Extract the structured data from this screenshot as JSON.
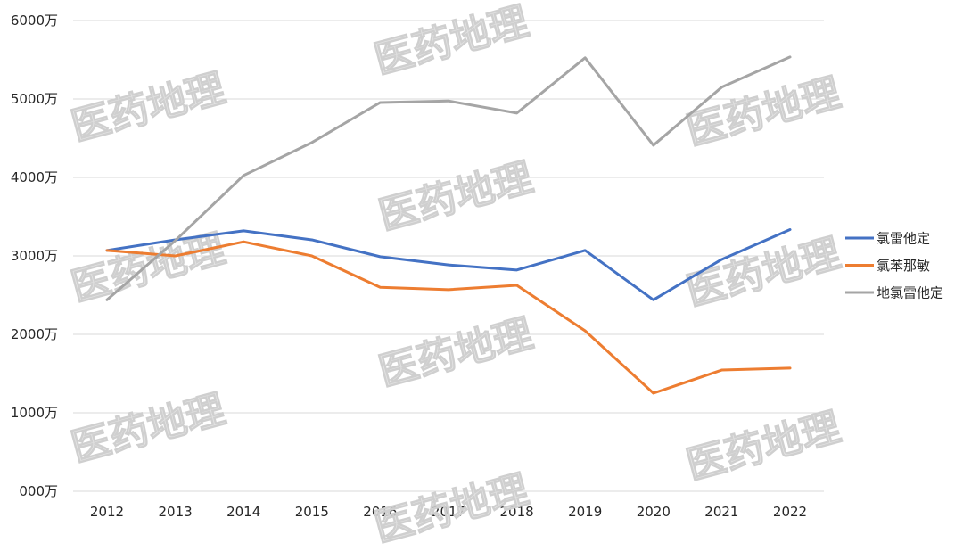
{
  "watermark": "医药地理",
  "chart_data": {
    "type": "line",
    "title": "",
    "xlabel": "",
    "ylabel": "",
    "categories": [
      "2012",
      "2013",
      "2014",
      "2015",
      "2016",
      "2017",
      "2018",
      "2019",
      "2020",
      "2021",
      "2022"
    ],
    "y_ticks": [
      0,
      1000,
      2000,
      3000,
      4000,
      5000,
      6000
    ],
    "y_tick_labels": [
      "000万",
      "1000万",
      "2000万",
      "3000万",
      "4000万",
      "5000万",
      "6000万"
    ],
    "ylim": [
      0,
      6000
    ],
    "grid": "horizontal",
    "legend_position": "right",
    "series": [
      {
        "name": "氯雷他定",
        "color": "#4472c4",
        "values": [
          3070,
          3205,
          3320,
          3205,
          2990,
          2885,
          2820,
          3070,
          2440,
          2955,
          3335
        ]
      },
      {
        "name": "氯苯那敏",
        "color": "#ed7d31",
        "values": [
          3070,
          3000,
          3180,
          3000,
          2600,
          2570,
          2625,
          2045,
          1250,
          1545,
          1570
        ]
      },
      {
        "name": "地氯雷他定",
        "color": "#a5a5a5",
        "values": [
          2440,
          3195,
          4025,
          4445,
          4955,
          4975,
          4820,
          5525,
          4410,
          5150,
          5535
        ]
      }
    ]
  }
}
